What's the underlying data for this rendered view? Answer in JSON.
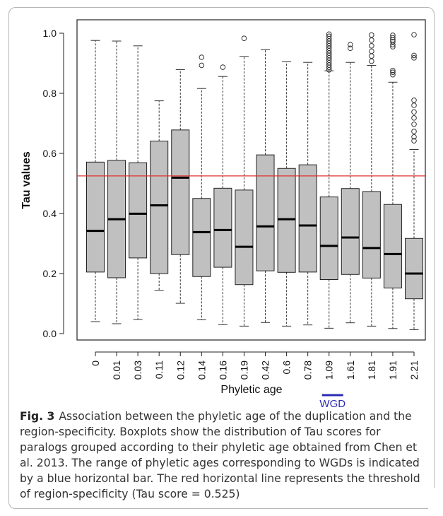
{
  "chart_data": {
    "type": "boxplot",
    "xlabel": "Phyletic age",
    "ylabel": "Tau values",
    "ylim": [
      0.0,
      1.0
    ],
    "yticks": [
      "0.0",
      "0.2",
      "0.4",
      "0.6",
      "0.8",
      "1.0"
    ],
    "grid": false,
    "box_color": "#c0c0c0",
    "threshold": {
      "value": 0.525,
      "color": "#e03030"
    },
    "wgd_bar": {
      "label": "WGD",
      "from": "1.09",
      "to": "1.61",
      "color": "#2b2bb5"
    },
    "categories": [
      "0",
      "0.01",
      "0.03",
      "0.11",
      "0.12",
      "0.14",
      "0.16",
      "0.19",
      "0.42",
      "0.6",
      "0.78",
      "1.09",
      "1.61",
      "1.81",
      "1.91",
      "2.21"
    ],
    "boxes": [
      {
        "min": 0.04,
        "q1": 0.205,
        "median": 0.342,
        "q3": 0.571,
        "max": 0.976,
        "outliers": []
      },
      {
        "min": 0.033,
        "q1": 0.186,
        "median": 0.381,
        "q3": 0.577,
        "max": 0.974,
        "outliers": []
      },
      {
        "min": 0.047,
        "q1": 0.252,
        "median": 0.399,
        "q3": 0.569,
        "max": 0.958,
        "outliers": []
      },
      {
        "min": 0.144,
        "q1": 0.2,
        "median": 0.427,
        "q3": 0.641,
        "max": 0.775,
        "outliers": []
      },
      {
        "min": 0.101,
        "q1": 0.263,
        "median": 0.519,
        "q3": 0.678,
        "max": 0.879,
        "outliers": []
      },
      {
        "min": 0.046,
        "q1": 0.19,
        "median": 0.338,
        "q3": 0.45,
        "max": 0.816,
        "outliers": [
          0.893,
          0.92
        ]
      },
      {
        "min": 0.03,
        "q1": 0.221,
        "median": 0.345,
        "q3": 0.484,
        "max": 0.856,
        "outliers": [
          0.887
        ]
      },
      {
        "min": 0.025,
        "q1": 0.163,
        "median": 0.289,
        "q3": 0.478,
        "max": 0.923,
        "outliers": [
          0.983
        ]
      },
      {
        "min": 0.037,
        "q1": 0.209,
        "median": 0.357,
        "q3": 0.595,
        "max": 0.945,
        "outliers": []
      },
      {
        "min": 0.025,
        "q1": 0.204,
        "median": 0.381,
        "q3": 0.55,
        "max": 0.905,
        "outliers": []
      },
      {
        "min": 0.029,
        "q1": 0.205,
        "median": 0.36,
        "q3": 0.562,
        "max": 0.903,
        "outliers": []
      },
      {
        "min": 0.018,
        "q1": 0.18,
        "median": 0.292,
        "q3": 0.455,
        "max": 0.875,
        "outliers": [
          0.878,
          0.886,
          0.894,
          0.902,
          0.91,
          0.918,
          0.926,
          0.934,
          0.942,
          0.95,
          0.958,
          0.966,
          0.974,
          0.982,
          0.99,
          0.997
        ]
      },
      {
        "min": 0.036,
        "q1": 0.197,
        "median": 0.32,
        "q3": 0.483,
        "max": 0.903,
        "outliers": [
          0.95,
          0.962
        ]
      },
      {
        "min": 0.025,
        "q1": 0.185,
        "median": 0.285,
        "q3": 0.473,
        "max": 0.893,
        "outliers": [
          0.907,
          0.924,
          0.94,
          0.958,
          0.977,
          0.994
        ]
      },
      {
        "min": 0.017,
        "q1": 0.152,
        "median": 0.265,
        "q3": 0.43,
        "max": 0.837,
        "outliers": [
          0.862,
          0.87,
          0.876,
          0.955,
          0.962,
          0.972,
          0.978,
          0.985,
          0.993
        ]
      },
      {
        "min": 0.013,
        "q1": 0.116,
        "median": 0.2,
        "q3": 0.317,
        "max": 0.613,
        "outliers": [
          0.642,
          0.655,
          0.673,
          0.697,
          0.718,
          0.738,
          0.76,
          0.777,
          0.918,
          0.926,
          0.995
        ]
      }
    ]
  },
  "caption": {
    "label": "Fig. 3",
    "text": "Association between the phyletic age of the duplication and the region-specificity. Boxplots show the distribution of Tau scores for paralogs grouped according to their phyletic age obtained from Chen et al. 2013. The range of phyletic ages corresponding to WGDs is indicated by a blue horizontal bar. The red horizontal line represents the threshold of region-specificity (Tau score = 0.525)"
  }
}
